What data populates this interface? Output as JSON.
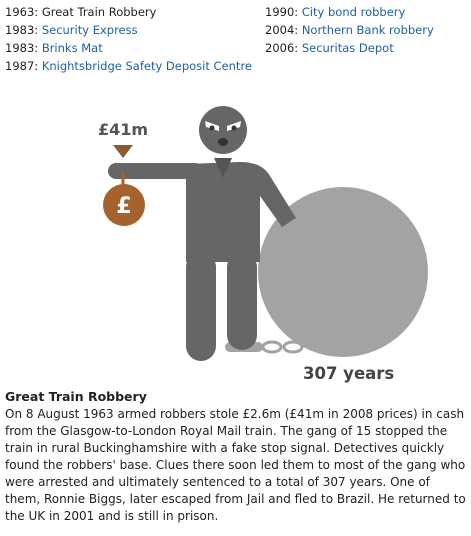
{
  "robberies": {
    "left": [
      {
        "year": "1963",
        "name": "Great Train Robbery",
        "active": true
      },
      {
        "year": "1983",
        "name": "Security Express",
        "active": false
      },
      {
        "year": "1983",
        "name": "Brinks Mat",
        "active": false
      },
      {
        "year": "1987",
        "name": "Knightsbridge Safety Deposit Centre",
        "active": false
      }
    ],
    "right": [
      {
        "year": "1990",
        "name": "City bond robbery",
        "active": false
      },
      {
        "year": "2004",
        "name": "Northern Bank robbery",
        "active": false
      },
      {
        "year": "2006",
        "name": "Securitas Depot",
        "active": false
      }
    ]
  },
  "illustration": {
    "amount": "£41m",
    "bag_symbol": "£",
    "sentence": "307 years",
    "colors": {
      "figure": "#666666",
      "ball": "#a3a3a3",
      "bag": "#a5622d",
      "marker": "#8b5a2b",
      "chain": "#a3a3a3"
    }
  },
  "story": {
    "title": "Great Train Robbery",
    "body": "On 8 August 1963 armed robbers stole £2.6m (£41m in 2008 prices) in cash from the Glasgow-to-London Royal Mail train. The gang of 15 stopped the train in rural Buckinghamshire with a fake stop signal. Detectives quickly found the robbers' base. Clues there soon led them to most of the gang who were arrested and ultimately sentenced to a total of 307 years. One of them, Ronnie Biggs, later escaped from Jail and fled to Brazil. He returned to the UK in 2001 and is still in prison."
  }
}
